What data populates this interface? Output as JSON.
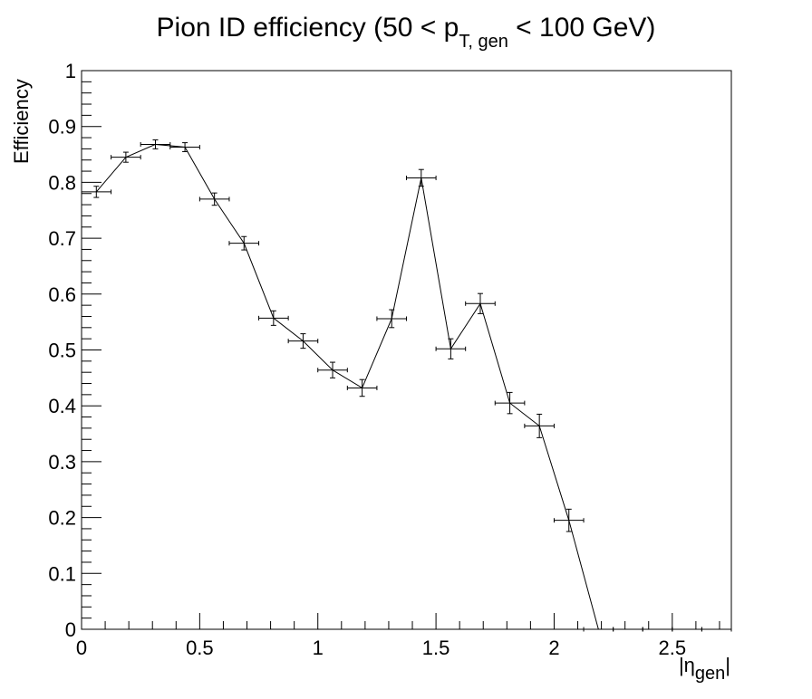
{
  "chart_data": {
    "type": "scatter",
    "title": {
      "prefix": "Pion ID efficiency (50 < p",
      "subscript": "T, gen",
      "suffix": " < 100 GeV)"
    },
    "xlabel": {
      "prefix": "|η",
      "subscript": "gen",
      "suffix": "|"
    },
    "ylabel": "Efficiency",
    "xlim": [
      0,
      2.75
    ],
    "ylim": [
      0,
      1
    ],
    "x_ticks": [
      0,
      0.5,
      1,
      1.5,
      2,
      2.5
    ],
    "x_tick_labels": [
      "0",
      "0.5",
      "1",
      "1.5",
      "2",
      "2.5"
    ],
    "y_ticks": [
      0,
      0.1,
      0.2,
      0.3,
      0.4,
      0.5,
      0.6,
      0.7,
      0.8,
      0.9,
      1
    ],
    "y_tick_labels": [
      "0",
      "0.1",
      "0.2",
      "0.3",
      "0.4",
      "0.5",
      "0.6",
      "0.7",
      "0.8",
      "0.9",
      "1"
    ],
    "grid": false,
    "connected": true,
    "x_half_width": 0.0625,
    "series": [
      {
        "x": [
          0.0625,
          0.1875,
          0.3125,
          0.4375,
          0.5625,
          0.6875,
          0.8125,
          0.9375,
          1.0625,
          1.1875,
          1.3125,
          1.4375,
          1.5625,
          1.6875,
          1.8125,
          1.9375,
          2.0625,
          2.1875,
          2.3125,
          2.4375,
          2.5625,
          2.6875
        ],
        "y": [
          0.783,
          0.845,
          0.868,
          0.863,
          0.77,
          0.691,
          0.557,
          0.516,
          0.464,
          0.432,
          0.556,
          0.808,
          0.502,
          0.583,
          0.405,
          0.364,
          0.195,
          0.0,
          0.0,
          0.0,
          0.0,
          0.0
        ],
        "yerr": [
          0.01,
          0.009,
          0.008,
          0.008,
          0.011,
          0.012,
          0.013,
          0.013,
          0.014,
          0.015,
          0.016,
          0.015,
          0.018,
          0.018,
          0.019,
          0.021,
          0.02,
          0.0,
          0.0,
          0.0,
          0.0,
          0.0
        ]
      }
    ]
  }
}
